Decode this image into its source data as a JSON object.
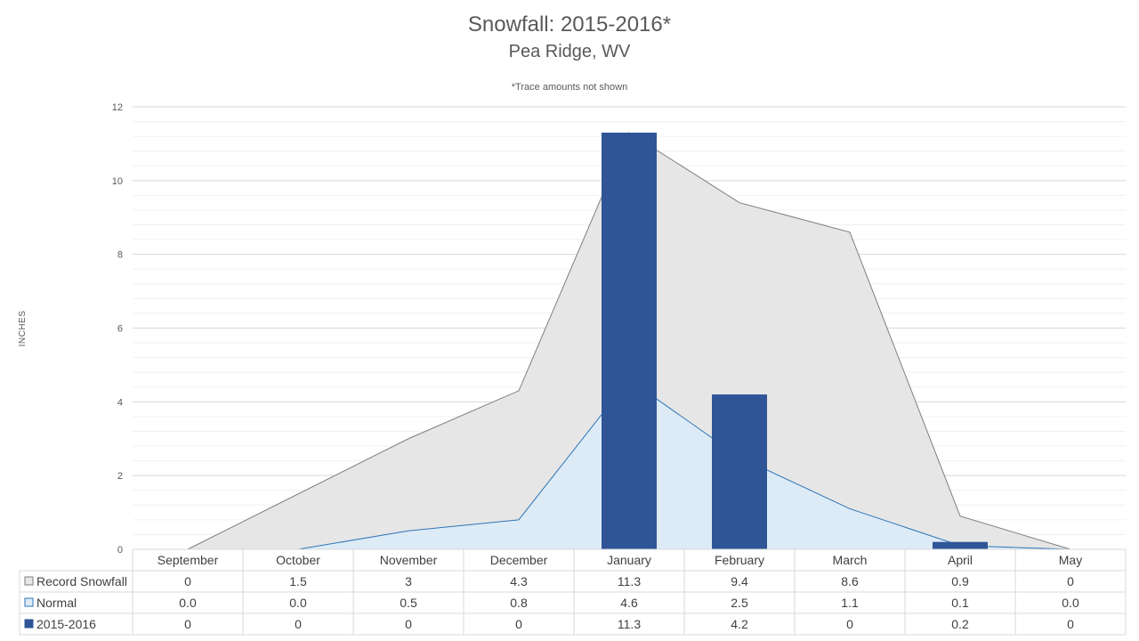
{
  "chart_data": {
    "type": "bar",
    "title": "Snowfall: 2015-2016*",
    "subtitle": "Pea Ridge, WV",
    "note": "*Trace amounts not shown",
    "ylabel": "INCHES",
    "ylim": [
      0,
      12
    ],
    "yticks": [
      "0",
      "2",
      "4",
      "6",
      "8",
      "10",
      "12"
    ],
    "gridlines": true,
    "categories": [
      "September",
      "October",
      "November",
      "December",
      "January",
      "February",
      "March",
      "April",
      "May"
    ],
    "series": [
      {
        "name": "Record Snowfall",
        "render": "area",
        "color": "#e6e6e6",
        "line_color": "#7f7f7f",
        "values": [
          0,
          1.5,
          3,
          4.3,
          11.3,
          9.4,
          8.6,
          0.9,
          0
        ],
        "labels": [
          "0",
          "1.5",
          "3",
          "4.3",
          "11.3",
          "9.4",
          "8.6",
          "0.9",
          "0"
        ]
      },
      {
        "name": "Normal",
        "render": "area",
        "color": "#ddebf7",
        "line_color": "#2e75b6",
        "values": [
          0.0,
          0.0,
          0.5,
          0.8,
          4.6,
          2.5,
          1.1,
          0.1,
          0.0
        ],
        "labels": [
          "0.0",
          "0.0",
          "0.5",
          "0.8",
          "4.6",
          "2.5",
          "1.1",
          "0.1",
          "0.0"
        ]
      },
      {
        "name": "2015-2016",
        "render": "bar",
        "color": "#2f5597",
        "values": [
          0,
          0,
          0,
          0,
          11.3,
          4.2,
          0,
          0.2,
          0
        ],
        "labels": [
          "0",
          "0",
          "0",
          "0",
          "11.3",
          "4.2",
          "0",
          "0.2",
          "0"
        ]
      }
    ],
    "legend": "data-table-left"
  }
}
